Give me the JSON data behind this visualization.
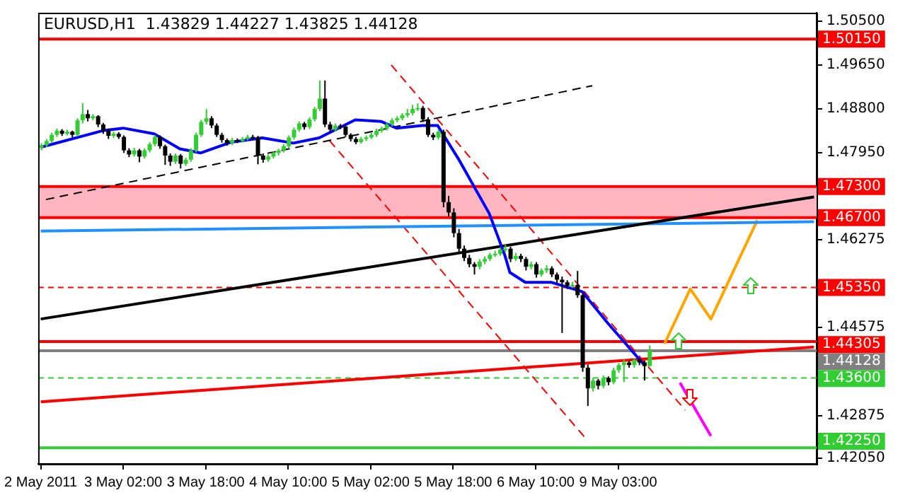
{
  "chart_data": {
    "type": "candlestick",
    "title": "EURUSD,H1  1.43829 1.44227 1.43825 1.44128",
    "categories": [
      "2 May 2011",
      null,
      null,
      null,
      null,
      null,
      null,
      null,
      null,
      null,
      null,
      null,
      null,
      null,
      null,
      null,
      "3 May 02:00",
      null,
      null,
      null,
      null,
      null,
      null,
      null,
      null,
      null,
      null,
      null,
      null,
      null,
      null,
      null,
      "3 May 18:00",
      null,
      null,
      null,
      null,
      null,
      null,
      null,
      null,
      null,
      null,
      null,
      null,
      null,
      null,
      null,
      "4 May 10:00",
      null,
      null,
      null,
      null,
      null,
      null,
      null,
      null,
      null,
      null,
      null,
      null,
      null,
      null,
      null,
      "5 May 02:00",
      null,
      null,
      null,
      null,
      null,
      null,
      null,
      null,
      null,
      null,
      null,
      null,
      null,
      null,
      null,
      "5 May 18:00",
      null,
      null,
      null,
      null,
      null,
      null,
      null,
      null,
      null,
      null,
      null,
      null,
      null,
      null,
      null,
      "6 May 10:00",
      null,
      null,
      null,
      null,
      null,
      null,
      null,
      null,
      null,
      null,
      null,
      null,
      null,
      null,
      null,
      "9 May 03:00",
      null,
      null,
      null,
      null,
      null,
      null,
      null,
      null,
      null,
      null,
      null,
      null,
      null,
      null,
      null,
      null,
      null,
      null,
      null,
      null,
      null,
      null,
      null,
      null,
      null,
      null,
      null,
      null,
      null,
      null,
      null,
      null,
      null,
      null,
      null,
      null,
      null,
      null
    ],
    "ohlc": [
      [
        1.4805,
        1.4814,
        1.48,
        1.481
      ],
      [
        1.481,
        1.4822,
        1.4806,
        1.4818
      ],
      [
        1.4818,
        1.4834,
        1.4814,
        1.483
      ],
      [
        1.483,
        1.4842,
        1.4826,
        1.4838
      ],
      [
        1.4838,
        1.4841,
        1.4828,
        1.4832
      ],
      [
        1.4832,
        1.484,
        1.4829,
        1.4836
      ],
      [
        1.4836,
        1.4838,
        1.4825,
        1.483
      ],
      [
        1.483,
        1.4862,
        1.4827,
        1.4858
      ],
      [
        1.4858,
        1.4891,
        1.4852,
        1.487
      ],
      [
        1.487,
        1.4878,
        1.4856,
        1.4862
      ],
      [
        1.4862,
        1.487,
        1.4858,
        1.4866
      ],
      [
        1.4866,
        1.4868,
        1.4845,
        1.485
      ],
      [
        1.485,
        1.4853,
        1.4832,
        1.4838
      ],
      [
        1.4838,
        1.4842,
        1.4822,
        1.4828
      ],
      [
        1.4828,
        1.4836,
        1.4824,
        1.4832
      ],
      [
        1.4832,
        1.4835,
        1.4822,
        1.4826
      ],
      [
        1.4826,
        1.4829,
        1.4795,
        1.48
      ],
      [
        1.48,
        1.4804,
        1.4787,
        1.4792
      ],
      [
        1.4792,
        1.4805,
        1.4788,
        1.48
      ],
      [
        1.48,
        1.4803,
        1.4777,
        1.4788
      ],
      [
        1.4788,
        1.4804,
        1.4784,
        1.48
      ],
      [
        1.48,
        1.4816,
        1.4796,
        1.4812
      ],
      [
        1.4812,
        1.483,
        1.4808,
        1.4826
      ],
      [
        1.4826,
        1.4829,
        1.4803,
        1.4808
      ],
      [
        1.4808,
        1.4811,
        1.4772,
        1.479
      ],
      [
        1.479,
        1.4794,
        1.477,
        1.4778
      ],
      [
        1.4778,
        1.4794,
        1.4774,
        1.479
      ],
      [
        1.479,
        1.4793,
        1.4765,
        1.4774
      ],
      [
        1.4774,
        1.4786,
        1.477,
        1.4782
      ],
      [
        1.4782,
        1.4804,
        1.4778,
        1.48
      ],
      [
        1.48,
        1.4834,
        1.4796,
        1.483
      ],
      [
        1.483,
        1.4859,
        1.4826,
        1.4855
      ],
      [
        1.4855,
        1.488,
        1.485,
        1.4862
      ],
      [
        1.4862,
        1.4866,
        1.4843,
        1.4848
      ],
      [
        1.4848,
        1.4852,
        1.4826,
        1.483
      ],
      [
        1.483,
        1.4834,
        1.4815,
        1.482
      ],
      [
        1.482,
        1.4823,
        1.4809,
        1.4814
      ],
      [
        1.4814,
        1.4824,
        1.481,
        1.482
      ],
      [
        1.482,
        1.4823,
        1.4814,
        1.4818
      ],
      [
        1.4818,
        1.4826,
        1.4815,
        1.4822
      ],
      [
        1.4822,
        1.483,
        1.4819,
        1.4826
      ],
      [
        1.4826,
        1.483,
        1.4821,
        1.4825
      ],
      [
        1.4825,
        1.4828,
        1.4773,
        1.479
      ],
      [
        1.479,
        1.4794,
        1.4776,
        1.4782
      ],
      [
        1.4782,
        1.4792,
        1.4778,
        1.4788
      ],
      [
        1.4788,
        1.4798,
        1.4784,
        1.4795
      ],
      [
        1.4795,
        1.4803,
        1.479,
        1.48
      ],
      [
        1.48,
        1.4812,
        1.4796,
        1.4808
      ],
      [
        1.4808,
        1.4829,
        1.4804,
        1.4825
      ],
      [
        1.4825,
        1.4844,
        1.4821,
        1.484
      ],
      [
        1.484,
        1.4856,
        1.4836,
        1.4852
      ],
      [
        1.4852,
        1.4855,
        1.484,
        1.4845
      ],
      [
        1.4845,
        1.4864,
        1.4841,
        1.486
      ],
      [
        1.486,
        1.4884,
        1.4856,
        1.488
      ],
      [
        1.488,
        1.4935,
        1.4876,
        1.49
      ],
      [
        1.49,
        1.4935,
        1.4845,
        1.485
      ],
      [
        1.485,
        1.4855,
        1.4835,
        1.484
      ],
      [
        1.484,
        1.4852,
        1.4836,
        1.4848
      ],
      [
        1.4848,
        1.4851,
        1.4841,
        1.4846
      ],
      [
        1.4846,
        1.4849,
        1.4826,
        1.483
      ],
      [
        1.483,
        1.4833,
        1.4817,
        1.4822
      ],
      [
        1.4822,
        1.4826,
        1.4812,
        1.4816
      ],
      [
        1.4816,
        1.4826,
        1.4813,
        1.4822
      ],
      [
        1.4822,
        1.4829,
        1.4818,
        1.4825
      ],
      [
        1.4825,
        1.4834,
        1.4822,
        1.483
      ],
      [
        1.483,
        1.4842,
        1.4826,
        1.4838
      ],
      [
        1.4838,
        1.4846,
        1.4834,
        1.4842
      ],
      [
        1.4842,
        1.4854,
        1.4838,
        1.485
      ],
      [
        1.485,
        1.4862,
        1.4846,
        1.4858
      ],
      [
        1.4858,
        1.4866,
        1.4854,
        1.4862
      ],
      [
        1.4862,
        1.4872,
        1.4858,
        1.4868
      ],
      [
        1.4868,
        1.488,
        1.4864,
        1.4872
      ],
      [
        1.4872,
        1.4888,
        1.4868,
        1.488
      ],
      [
        1.488,
        1.4891,
        1.4876,
        1.4882
      ],
      [
        1.4882,
        1.4886,
        1.4855,
        1.486
      ],
      [
        1.486,
        1.4864,
        1.4826,
        1.483
      ],
      [
        1.483,
        1.4834,
        1.482,
        1.4825
      ],
      [
        1.4825,
        1.484,
        1.4821,
        1.4836
      ],
      [
        1.4836,
        1.484,
        1.469,
        1.47
      ],
      [
        1.47,
        1.4712,
        1.4672,
        1.468
      ],
      [
        1.468,
        1.4688,
        1.4632,
        1.464
      ],
      [
        1.464,
        1.4648,
        1.4602,
        1.461
      ],
      [
        1.461,
        1.4616,
        1.4586,
        1.4592
      ],
      [
        1.4592,
        1.4598,
        1.4574,
        1.458
      ],
      [
        1.458,
        1.4584,
        1.456,
        1.4575
      ],
      [
        1.4575,
        1.459,
        1.457,
        1.4585
      ],
      [
        1.4585,
        1.4595,
        1.458,
        1.459
      ],
      [
        1.459,
        1.4602,
        1.4586,
        1.4598
      ],
      [
        1.4598,
        1.4606,
        1.4594,
        1.46
      ],
      [
        1.46,
        1.4612,
        1.4596,
        1.4608
      ],
      [
        1.4608,
        1.4618,
        1.4603,
        1.461
      ],
      [
        1.461,
        1.4614,
        1.4584,
        1.459
      ],
      [
        1.459,
        1.4602,
        1.4586,
        1.4596
      ],
      [
        1.4596,
        1.46,
        1.4584,
        1.459
      ],
      [
        1.459,
        1.4594,
        1.4568,
        1.4575
      ],
      [
        1.4575,
        1.4585,
        1.457,
        1.458
      ],
      [
        1.458,
        1.4584,
        1.4554,
        1.456
      ],
      [
        1.456,
        1.4572,
        1.4556,
        1.4568
      ],
      [
        1.4568,
        1.4578,
        1.4563,
        1.4572
      ],
      [
        1.4572,
        1.4576,
        1.4555,
        1.456
      ],
      [
        1.456,
        1.4564,
        1.4544,
        1.455
      ],
      [
        1.455,
        1.4556,
        1.4447,
        1.4545
      ],
      [
        1.4545,
        1.4549,
        1.4532,
        1.4538
      ],
      [
        1.4538,
        1.4546,
        1.4534,
        1.454
      ],
      [
        1.454,
        1.4567,
        1.4515,
        1.452
      ],
      [
        1.452,
        1.4525,
        1.4372,
        1.438
      ],
      [
        1.438,
        1.4386,
        1.4306,
        1.434
      ],
      [
        1.434,
        1.436,
        1.4334,
        1.4355
      ],
      [
        1.4355,
        1.4358,
        1.4338,
        1.4345
      ],
      [
        1.4345,
        1.4365,
        1.434,
        1.436
      ],
      [
        1.436,
        1.4363,
        1.4346,
        1.4352
      ],
      [
        1.4352,
        1.438,
        1.4348,
        1.4375
      ],
      [
        1.4375,
        1.4389,
        1.437,
        1.4385
      ],
      [
        1.4385,
        1.4396,
        1.4352,
        1.439
      ],
      [
        1.439,
        1.4393,
        1.438,
        1.4385
      ],
      [
        1.4385,
        1.4398,
        1.438,
        1.4395
      ],
      [
        1.4395,
        1.4398,
        1.4385,
        1.439
      ],
      [
        1.439,
        1.4394,
        1.4355,
        1.4383
      ],
      [
        1.4383,
        1.4423,
        1.4383,
        1.4413
      ],
      null,
      null,
      null,
      null,
      null,
      null,
      null,
      null,
      null,
      null,
      null,
      null,
      null,
      null,
      null,
      null,
      null,
      null,
      null,
      null,
      null,
      null,
      null,
      null,
      null,
      null,
      null,
      null,
      null,
      null,
      null,
      null
    ],
    "colors": [
      "#32cd32",
      "#32cd32",
      "#32cd32",
      "#32cd32",
      "#000000",
      "#32cd32",
      "#000000",
      "#32cd32",
      "#32cd32",
      "#000000",
      "#32cd32",
      "#000000",
      "#000000",
      "#000000",
      "#32cd32",
      "#000000",
      "#000000",
      "#000000",
      "#32cd32",
      "#000000",
      "#32cd32",
      "#32cd32",
      "#32cd32",
      "#000000",
      "#000000",
      "#000000",
      "#32cd32",
      "#000000",
      "#32cd32",
      "#32cd32",
      "#32cd32",
      "#32cd32",
      "#32cd32",
      "#000000",
      "#000000",
      "#000000",
      "#000000",
      "#32cd32",
      "#000000",
      "#32cd32",
      "#32cd32",
      "#000000",
      "#000000",
      "#000000",
      "#32cd32",
      "#32cd32",
      "#32cd32",
      "#32cd32",
      "#32cd32",
      "#32cd32",
      "#32cd32",
      "#000000",
      "#32cd32",
      "#32cd32",
      "#32cd32",
      "#000000",
      "#000000",
      "#32cd32",
      "#000000",
      "#000000",
      "#000000",
      "#000000",
      "#32cd32",
      "#32cd32",
      "#32cd32",
      "#32cd32",
      "#32cd32",
      "#32cd32",
      "#32cd32",
      "#32cd32",
      "#32cd32",
      "#32cd32",
      "#32cd32",
      "#32cd32",
      "#000000",
      "#000000",
      "#000000",
      "#32cd32",
      "#000000",
      "#000000",
      "#000000",
      "#000000",
      "#000000",
      "#000000",
      "#000000",
      "#32cd32",
      "#32cd32",
      "#32cd32",
      "#32cd32",
      "#32cd32",
      "#32cd32",
      "#000000",
      "#32cd32",
      "#000000",
      "#000000",
      "#32cd32",
      "#000000",
      "#32cd32",
      "#32cd32",
      "#000000",
      "#000000",
      "#000000",
      "#000000",
      "#32cd32",
      "#000000",
      "#000000",
      "#000000",
      "#32cd32",
      "#000000",
      "#32cd32",
      "#000000",
      "#32cd32",
      "#32cd32",
      "#32cd32",
      "#000000",
      "#32cd32",
      "#000000",
      "#000000",
      "#32cd32",
      null,
      null,
      null,
      null,
      null,
      null,
      null,
      null,
      null,
      null,
      null,
      null,
      null,
      null,
      null,
      null,
      null,
      null,
      null,
      null,
      null,
      null,
      null,
      null,
      null,
      null,
      null,
      null,
      null,
      null,
      null,
      null
    ],
    "series": [
      {
        "type": "line",
        "color": "#0000ff",
        "values": [
          1.4806,
          null,
          null,
          null,
          null,
          null,
          null,
          null,
          null,
          null,
          null,
          null,
          1.4838,
          null,
          null,
          null,
          1.4843,
          null,
          null,
          null,
          null,
          null,
          1.4832,
          null,
          null,
          null,
          null,
          1.4803,
          null,
          null,
          null,
          1.4795,
          null,
          null,
          null,
          null,
          null,
          1.4816,
          null,
          null,
          null,
          null,
          null,
          1.4824,
          null,
          null,
          null,
          null,
          null,
          1.4814,
          null,
          null,
          null,
          null,
          1.4824,
          null,
          null,
          null,
          null,
          null,
          null,
          1.4859,
          null,
          null,
          null,
          null,
          1.4856,
          null,
          null,
          1.4843,
          null,
          null,
          null,
          null,
          1.4848,
          null,
          null,
          1.4848,
          null,
          null,
          null,
          1.4784,
          null,
          null,
          null,
          null,
          null,
          1.4678,
          null,
          null,
          1.4598,
          1.4564,
          null,
          null,
          1.4545,
          null,
          null,
          null,
          null,
          1.4545,
          null,
          null,
          null,
          null,
          null,
          1.4527,
          null,
          null,
          null,
          null,
          1.4466,
          null,
          null,
          null,
          null,
          null,
          null,
          1.4386,
          null,
          null,
          null,
          null,
          null,
          null,
          null,
          null,
          null,
          null,
          null,
          null,
          null,
          null,
          null,
          null,
          null,
          null,
          null,
          null,
          null,
          null,
          null,
          null,
          null,
          null,
          null,
          null,
          null,
          null,
          null,
          null,
          null
        ]
      },
      {
        "type": "line",
        "color": "#000000",
        "line_style": "dashed",
        "values": [
          null,
          1.4705,
          null,
          null,
          null,
          null,
          null,
          null,
          null,
          null,
          null,
          null,
          null,
          null,
          null,
          null,
          null,
          null,
          null,
          null,
          null,
          null,
          null,
          null,
          null,
          null,
          null,
          null,
          null,
          null,
          null,
          null,
          null,
          null,
          null,
          null,
          null,
          null,
          null,
          null,
          null,
          null,
          null,
          null,
          null,
          null,
          null,
          null,
          null,
          null,
          null,
          null,
          null,
          null,
          null,
          null,
          null,
          null,
          null,
          null,
          null,
          null,
          null,
          null,
          null,
          null,
          null,
          null,
          null,
          null,
          null,
          null,
          null,
          null,
          null,
          null,
          null,
          null,
          null,
          null,
          null,
          null,
          null,
          null,
          null,
          null,
          null,
          null,
          null,
          null,
          null,
          null,
          null,
          null,
          null,
          null,
          null,
          null,
          null,
          null,
          null,
          null,
          null,
          null,
          null,
          null,
          null,
          1.4925,
          null,
          null,
          null,
          null,
          null,
          null,
          null,
          null,
          null,
          null,
          null,
          null,
          null,
          null,
          null,
          null,
          null,
          null,
          null,
          null,
          null,
          null,
          null,
          null,
          null,
          null,
          null,
          null,
          null,
          null,
          null,
          null,
          null,
          null,
          null,
          null,
          null,
          null,
          null,
          null,
          null,
          null,
          null
        ]
      },
      {
        "type": "line",
        "color": "#000000",
        "values": [
          1.4474,
          null,
          null,
          null,
          null,
          null,
          null,
          null,
          null,
          null,
          null,
          null,
          null,
          null,
          null,
          null,
          null,
          null,
          null,
          null,
          null,
          null,
          null,
          null,
          null,
          null,
          null,
          null,
          null,
          null,
          null,
          null,
          null,
          null,
          null,
          null,
          null,
          null,
          null,
          null,
          null,
          null,
          null,
          null,
          null,
          null,
          null,
          null,
          null,
          null,
          null,
          null,
          null,
          null,
          null,
          null,
          null,
          null,
          null,
          null,
          null,
          null,
          null,
          null,
          null,
          null,
          null,
          null,
          null,
          null,
          null,
          null,
          null,
          null,
          null,
          null,
          null,
          null,
          null,
          null,
          null,
          null,
          null,
          null,
          null,
          null,
          null,
          null,
          null,
          null,
          null,
          null,
          null,
          null,
          null,
          null,
          null,
          null,
          null,
          null,
          null,
          null,
          null,
          null,
          null,
          null,
          null,
          null,
          null,
          null,
          null,
          null,
          null,
          null,
          null,
          null,
          null,
          null,
          null,
          null,
          null,
          null,
          null,
          null,
          null,
          null,
          null,
          null,
          null,
          null,
          null,
          null,
          null,
          null,
          null,
          null,
          null,
          null,
          null,
          null,
          null,
          null,
          null,
          null,
          null,
          null,
          null,
          null,
          null,
          null,
          1.471
        ]
      },
      {
        "type": "line",
        "color": "#1e90ff",
        "values": [
          1.4644,
          null,
          null,
          null,
          null,
          null,
          null,
          null,
          null,
          null,
          null,
          null,
          null,
          null,
          null,
          null,
          null,
          null,
          null,
          null,
          null,
          null,
          null,
          null,
          null,
          null,
          null,
          null,
          null,
          null,
          null,
          null,
          null,
          null,
          null,
          null,
          null,
          null,
          null,
          null,
          null,
          null,
          null,
          null,
          null,
          null,
          null,
          null,
          null,
          null,
          null,
          null,
          null,
          null,
          null,
          null,
          null,
          null,
          null,
          null,
          null,
          null,
          null,
          null,
          null,
          null,
          null,
          null,
          null,
          null,
          null,
          null,
          null,
          null,
          null,
          null,
          null,
          null,
          null,
          null,
          null,
          null,
          null,
          null,
          null,
          null,
          null,
          null,
          null,
          null,
          null,
          null,
          null,
          null,
          null,
          null,
          null,
          null,
          null,
          null,
          null,
          null,
          null,
          null,
          null,
          null,
          null,
          null,
          null,
          null,
          null,
          null,
          null,
          null,
          null,
          null,
          null,
          null,
          null,
          null,
          null,
          null,
          null,
          null,
          null,
          null,
          null,
          null,
          null,
          null,
          null,
          null,
          null,
          null,
          null,
          null,
          null,
          null,
          null,
          null,
          null,
          null,
          null,
          null,
          null,
          null,
          null,
          null,
          null,
          null,
          1.4662
        ]
      },
      {
        "type": "line",
        "color": "#ff0000",
        "values": [
          1.4314,
          null,
          null,
          null,
          null,
          null,
          null,
          null,
          null,
          null,
          null,
          null,
          null,
          null,
          null,
          null,
          null,
          null,
          null,
          null,
          null,
          null,
          null,
          null,
          null,
          null,
          null,
          null,
          null,
          null,
          null,
          null,
          null,
          null,
          null,
          null,
          null,
          null,
          null,
          null,
          null,
          null,
          null,
          null,
          null,
          null,
          null,
          null,
          null,
          null,
          null,
          null,
          null,
          null,
          null,
          null,
          null,
          null,
          null,
          null,
          null,
          null,
          null,
          null,
          null,
          null,
          null,
          null,
          null,
          null,
          null,
          null,
          null,
          null,
          null,
          null,
          null,
          null,
          null,
          null,
          null,
          null,
          null,
          null,
          null,
          null,
          null,
          null,
          null,
          null,
          null,
          null,
          null,
          null,
          null,
          null,
          null,
          null,
          null,
          null,
          null,
          null,
          null,
          null,
          null,
          null,
          null,
          null,
          null,
          null,
          null,
          null,
          null,
          null,
          null,
          null,
          null,
          null,
          null,
          null,
          null,
          null,
          null,
          null,
          null,
          null,
          null,
          null,
          null,
          null,
          null,
          null,
          null,
          null,
          null,
          null,
          null,
          null,
          null,
          null,
          null,
          null,
          null,
          null,
          null,
          null,
          null,
          null,
          null,
          null,
          1.442
        ]
      },
      {
        "type": "line",
        "color": "#ff0000",
        "line_style": "dashed",
        "values": [
          null,
          null,
          null,
          null,
          null,
          null,
          null,
          null,
          null,
          null,
          null,
          null,
          null,
          null,
          null,
          null,
          null,
          null,
          null,
          null,
          null,
          null,
          null,
          null,
          null,
          null,
          null,
          null,
          null,
          null,
          null,
          null,
          null,
          null,
          null,
          null,
          null,
          null,
          null,
          null,
          null,
          null,
          null,
          null,
          null,
          null,
          null,
          null,
          null,
          null,
          null,
          null,
          null,
          null,
          null,
          null,
          null,
          null,
          null,
          null,
          null,
          null,
          null,
          null,
          null,
          null,
          null,
          null,
          1.4965,
          null,
          null,
          null,
          null,
          null,
          null,
          null,
          null,
          null,
          null,
          null,
          null,
          null,
          null,
          null,
          null,
          null,
          null,
          null,
          null,
          null,
          null,
          null,
          null,
          null,
          null,
          null,
          null,
          null,
          null,
          null,
          null,
          null,
          null,
          null,
          null,
          null,
          null,
          null,
          null,
          null,
          null,
          null,
          null,
          null,
          null,
          null,
          null,
          null,
          null,
          null,
          null,
          null,
          null,
          null,
          null,
          1.4298,
          null,
          null,
          null,
          null,
          null,
          null,
          null,
          null,
          null,
          null,
          null,
          null,
          null,
          null,
          null,
          null,
          null,
          null,
          null,
          null,
          null,
          null,
          null,
          null,
          null
        ]
      },
      {
        "type": "line",
        "color": "#ff0000",
        "line_style": "dashed",
        "values": [
          null,
          null,
          null,
          null,
          null,
          null,
          null,
          null,
          null,
          null,
          null,
          null,
          null,
          null,
          null,
          null,
          null,
          null,
          null,
          null,
          null,
          null,
          null,
          null,
          null,
          null,
          null,
          null,
          null,
          null,
          null,
          null,
          null,
          null,
          null,
          null,
          null,
          null,
          null,
          null,
          null,
          null,
          null,
          null,
          null,
          null,
          null,
          null,
          null,
          null,
          null,
          null,
          null,
          null,
          null,
          null,
          1.4819,
          null,
          null,
          null,
          null,
          null,
          null,
          null,
          null,
          null,
          null,
          null,
          null,
          null,
          null,
          null,
          null,
          null,
          null,
          null,
          null,
          null,
          null,
          null,
          null,
          null,
          null,
          null,
          null,
          null,
          null,
          null,
          null,
          null,
          null,
          null,
          null,
          null,
          null,
          null,
          null,
          null,
          null,
          null,
          null,
          null,
          null,
          null,
          null,
          null,
          1.424,
          null,
          null,
          null,
          null,
          null,
          null,
          null,
          null,
          null,
          null,
          null,
          null,
          null,
          null,
          null,
          null,
          null,
          null,
          null,
          null,
          null,
          null,
          null,
          null,
          null,
          null,
          null,
          null,
          null,
          null,
          null,
          null,
          null,
          null,
          null,
          null,
          null,
          null,
          null,
          null,
          null,
          null,
          null,
          null
        ]
      },
      {
        "type": "line",
        "color": "#ffa500",
        "values": [
          null,
          null,
          null,
          null,
          null,
          null,
          null,
          null,
          null,
          null,
          null,
          null,
          null,
          null,
          null,
          null,
          null,
          null,
          null,
          null,
          null,
          null,
          null,
          null,
          null,
          null,
          null,
          null,
          null,
          null,
          null,
          null,
          null,
          null,
          null,
          null,
          null,
          null,
          null,
          null,
          null,
          null,
          null,
          null,
          null,
          null,
          null,
          null,
          null,
          null,
          null,
          null,
          null,
          null,
          null,
          null,
          null,
          null,
          null,
          null,
          null,
          null,
          null,
          null,
          null,
          null,
          null,
          null,
          null,
          null,
          null,
          null,
          null,
          null,
          null,
          null,
          null,
          null,
          null,
          null,
          null,
          null,
          null,
          null,
          null,
          null,
          null,
          null,
          null,
          null,
          null,
          null,
          null,
          null,
          null,
          null,
          null,
          null,
          null,
          null,
          null,
          null,
          null,
          null,
          null,
          null,
          null,
          null,
          null,
          null,
          null,
          null,
          null,
          null,
          null,
          null,
          null,
          null,
          null,
          null,
          null,
          1.4426,
          null,
          null,
          null,
          null,
          1.4532,
          null,
          null,
          null,
          1.4474,
          null,
          null,
          null,
          null,
          null,
          null,
          null,
          null,
          1.4665,
          null,
          null,
          null,
          null,
          null,
          null,
          null,
          null,
          null,
          null,
          null
        ]
      },
      {
        "type": "line",
        "color": "#ff00ff",
        "values": [
          null,
          null,
          null,
          null,
          null,
          null,
          null,
          null,
          null,
          null,
          null,
          null,
          null,
          null,
          null,
          null,
          null,
          null,
          null,
          null,
          null,
          null,
          null,
          null,
          null,
          null,
          null,
          null,
          null,
          null,
          null,
          null,
          null,
          null,
          null,
          null,
          null,
          null,
          null,
          null,
          null,
          null,
          null,
          null,
          null,
          null,
          null,
          null,
          null,
          null,
          null,
          null,
          null,
          null,
          null,
          null,
          null,
          null,
          null,
          null,
          null,
          null,
          null,
          null,
          null,
          null,
          null,
          null,
          null,
          null,
          null,
          null,
          null,
          null,
          null,
          null,
          null,
          null,
          null,
          null,
          null,
          null,
          null,
          null,
          null,
          null,
          null,
          null,
          null,
          null,
          null,
          null,
          null,
          null,
          null,
          null,
          null,
          null,
          null,
          null,
          null,
          null,
          null,
          null,
          null,
          null,
          null,
          null,
          null,
          null,
          null,
          null,
          null,
          null,
          null,
          null,
          null,
          null,
          null,
          null,
          null,
          null,
          null,
          null,
          1.4351,
          null,
          null,
          null,
          null,
          null,
          1.4248,
          null,
          null,
          null,
          null,
          null,
          null,
          null,
          null,
          null,
          null,
          null,
          null,
          null,
          null,
          null,
          null,
          null,
          null,
          null,
          null
        ]
      }
    ],
    "ref_lines": [
      {
        "axis": "y",
        "value": 1.5015,
        "label": "1.50150",
        "color": "#ff0000",
        "line_style": "solid"
      },
      {
        "axis": "y",
        "value": 1.473,
        "label": "1.47300",
        "color": "#ff0000",
        "line_style": "solid"
      },
      {
        "axis": "y",
        "value": 1.467,
        "label": "1.46700",
        "color": "#ff0000",
        "line_style": "solid"
      },
      {
        "axis": "y",
        "value": 1.4535,
        "label": "1.45350",
        "color": "#ff0000",
        "line_style": "dashed"
      },
      {
        "axis": "y",
        "value": 1.44305,
        "label": "1.44305",
        "color": "#ff0000",
        "line_style": "solid"
      },
      {
        "axis": "y",
        "value": 1.44128,
        "label": "1.44128",
        "color": "#808080",
        "line_style": "solid"
      },
      {
        "axis": "y",
        "value": 1.436,
        "label": "1.43600",
        "color": "#32cd32",
        "line_style": "dashed"
      },
      {
        "axis": "y",
        "value": 1.4225,
        "label": "1.42250",
        "color": "#32cd32",
        "line_style": "solid"
      }
    ],
    "bands": [
      {
        "axis": "y",
        "from": 1.467,
        "to": 1.473,
        "color": "#ffb6c1"
      }
    ],
    "ylim": [
      1.4194,
      1.5066
    ],
    "yticks": [
      {
        "value": 1.505,
        "label": "1.50500"
      },
      {
        "value": 1.4965,
        "label": "1.49650"
      },
      {
        "value": 1.488,
        "label": "1.48800"
      },
      {
        "value": 1.4795,
        "label": "1.47950"
      },
      {
        "value": 1.46275,
        "label": "1.46275"
      },
      {
        "value": 1.44575,
        "label": "1.44575"
      },
      {
        "value": 1.42875,
        "label": "1.42875"
      },
      {
        "value": 1.4205,
        "label": "1.42050"
      }
    ]
  }
}
